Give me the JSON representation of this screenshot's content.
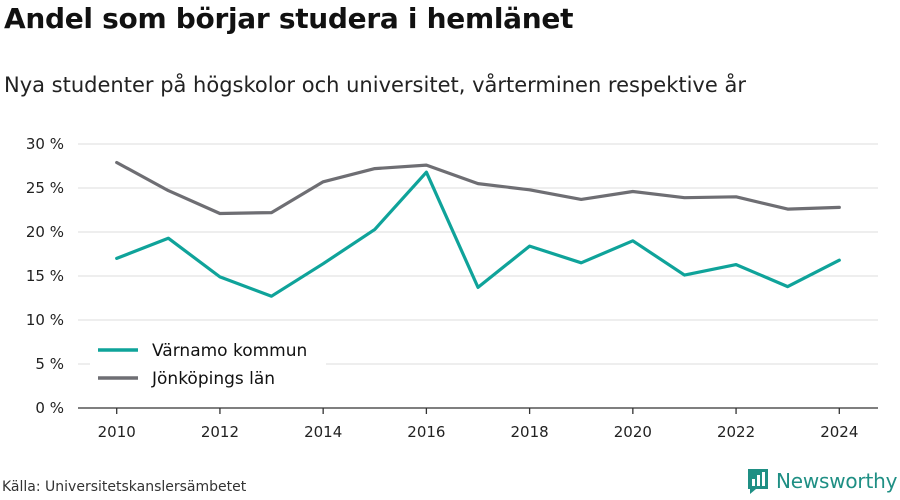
{
  "title": "Andel som börjar studera i hemlänet",
  "subtitle": "Nya studenter på högskolor och universitet, vårterminen respektive år",
  "source": "Källa: Universitetskanslersämbetet",
  "brand": {
    "name": "Newsworthy",
    "icon": "newsworthy-logo-icon",
    "color": "#1f8f84"
  },
  "chart_data": {
    "type": "line",
    "x": [
      2010,
      2011,
      2012,
      2013,
      2014,
      2015,
      2016,
      2017,
      2018,
      2019,
      2020,
      2021,
      2022,
      2023,
      2024
    ],
    "series": [
      {
        "name": "Värnamo kommun",
        "color": "#0fa39a",
        "values": [
          17.0,
          19.3,
          14.9,
          12.7,
          16.4,
          20.3,
          26.8,
          13.7,
          18.4,
          16.5,
          19.0,
          15.1,
          16.3,
          13.8,
          16.8
        ]
      },
      {
        "name": "Jönköpings län",
        "color": "#6e6e73",
        "values": [
          27.9,
          24.7,
          22.1,
          22.2,
          25.7,
          27.2,
          27.6,
          25.5,
          24.8,
          23.7,
          24.6,
          23.9,
          24.0,
          22.6,
          22.8
        ]
      }
    ],
    "xticks": [
      "2010",
      "2012",
      "2014",
      "2016",
      "2018",
      "2020",
      "2022",
      "2024"
    ],
    "yticks": [
      "0 %",
      "5 %",
      "10 %",
      "15 %",
      "20 %",
      "25 %",
      "30 %"
    ],
    "ylim": [
      0,
      30
    ],
    "xlim": [
      2009.25,
      2024.75
    ],
    "grid": true,
    "legend_position": "bottom-left"
  }
}
